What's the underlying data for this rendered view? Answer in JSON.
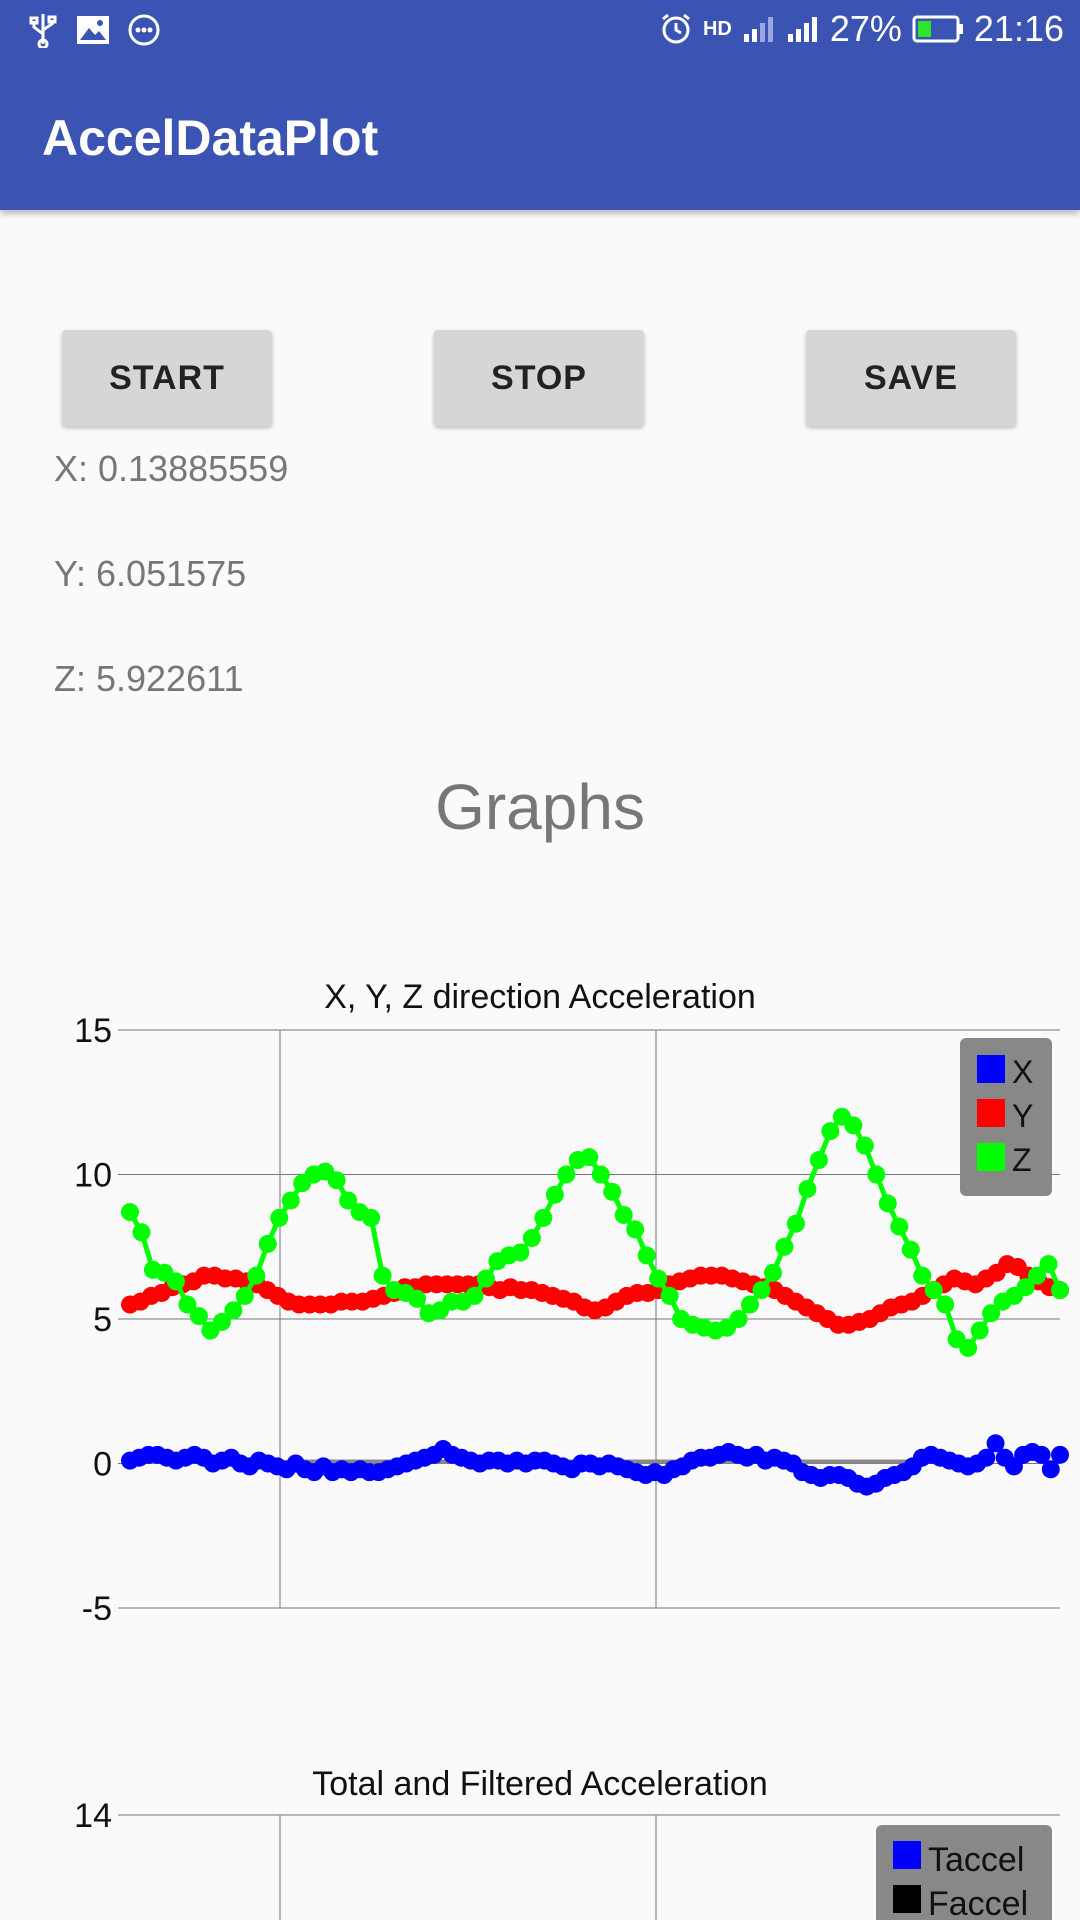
{
  "status_bar": {
    "battery_percent": "27%",
    "time": "21:16",
    "network_label": "HD",
    "icons": [
      "usb-icon",
      "image-icon",
      "more-icon",
      "alarm-icon",
      "signal-icon",
      "signal-icon",
      "battery-icon"
    ]
  },
  "app_bar": {
    "title": "AccelDataPlot"
  },
  "controls": {
    "start": "START",
    "stop": "STOP",
    "save": "SAVE"
  },
  "readings": {
    "x": "X: 0.13885559",
    "y": "Y: 6.051575",
    "z": "Z: 5.922611"
  },
  "section_title": "Graphs",
  "colors": {
    "primary": "#3b53b2",
    "series_x": "#0000ff",
    "series_y": "#ff0000",
    "series_z": "#00ff00"
  },
  "chart_data": [
    {
      "type": "line",
      "title": "X, Y, Z direction Acceleration",
      "xlabel": "",
      "ylabel": "",
      "ylim": [
        -5,
        15
      ],
      "y_ticks": [
        "15",
        "10",
        "5",
        "0",
        "-5"
      ],
      "grid": true,
      "legend_position": "top-right",
      "legend": [
        "X",
        "Y",
        "Z"
      ],
      "series": [
        {
          "name": "X",
          "color": "#0000ff",
          "values": [
            0.1,
            0.2,
            0.3,
            0.3,
            0.2,
            0.1,
            0.2,
            0.3,
            0.2,
            0.0,
            0.1,
            0.2,
            0.0,
            -0.1,
            0.1,
            0.0,
            -0.1,
            -0.2,
            0.0,
            -0.2,
            -0.3,
            -0.1,
            -0.3,
            -0.2,
            -0.3,
            -0.2,
            -0.3,
            -0.3,
            -0.2,
            -0.1,
            0.0,
            0.1,
            0.2,
            0.3,
            0.5,
            0.3,
            0.2,
            0.1,
            0.0,
            0.1,
            0.1,
            0.0,
            0.1,
            0.0,
            0.1,
            0.1,
            0.0,
            -0.1,
            -0.2,
            0.0,
            0.0,
            -0.1,
            0.0,
            -0.1,
            -0.2,
            -0.3,
            -0.4,
            -0.3,
            -0.4,
            -0.2,
            -0.1,
            0.1,
            0.2,
            0.2,
            0.3,
            0.4,
            0.3,
            0.2,
            0.3,
            0.1,
            0.2,
            0.1,
            0.0,
            -0.3,
            -0.4,
            -0.5,
            -0.4,
            -0.4,
            -0.5,
            -0.7,
            -0.8,
            -0.7,
            -0.5,
            -0.4,
            -0.3,
            -0.1,
            0.2,
            0.3,
            0.2,
            0.1,
            0.0,
            -0.1,
            0.0,
            0.2,
            0.7,
            0.2,
            -0.1,
            0.3,
            0.4,
            0.3,
            -0.2,
            0.3
          ]
        },
        {
          "name": "Y",
          "color": "#ff0000",
          "values": [
            5.5,
            5.6,
            5.8,
            5.9,
            6.1,
            6.2,
            6.3,
            6.5,
            6.5,
            6.4,
            6.4,
            6.3,
            6.2,
            6.0,
            5.8,
            5.6,
            5.5,
            5.5,
            5.5,
            5.5,
            5.6,
            5.6,
            5.6,
            5.7,
            5.8,
            5.9,
            6.1,
            6.1,
            6.2,
            6.2,
            6.2,
            6.2,
            6.2,
            6.2,
            6.1,
            6.0,
            6.1,
            6.0,
            6.0,
            5.9,
            5.8,
            5.7,
            5.6,
            5.4,
            5.3,
            5.4,
            5.6,
            5.8,
            5.9,
            5.9,
            6.0,
            6.2,
            6.3,
            6.4,
            6.5,
            6.5,
            6.5,
            6.4,
            6.3,
            6.2,
            6.1,
            6.0,
            5.8,
            5.6,
            5.4,
            5.2,
            5.0,
            4.8,
            4.8,
            4.9,
            5.0,
            5.2,
            5.4,
            5.5,
            5.6,
            5.8,
            6.0,
            6.2,
            6.4,
            6.3,
            6.2,
            6.4,
            6.6,
            6.9,
            6.8,
            6.5,
            6.3,
            6.1,
            6.0
          ]
        },
        {
          "name": "Z",
          "color": "#00ff00",
          "values": [
            8.7,
            8.0,
            6.7,
            6.6,
            6.3,
            5.5,
            5.1,
            4.6,
            4.9,
            5.3,
            5.8,
            6.5,
            7.6,
            8.5,
            9.1,
            9.7,
            10.0,
            10.1,
            9.8,
            9.1,
            8.7,
            8.5,
            6.5,
            6.0,
            5.9,
            5.7,
            5.2,
            5.3,
            5.6,
            5.6,
            5.8,
            6.4,
            7.0,
            7.2,
            7.3,
            7.8,
            8.5,
            9.3,
            10.0,
            10.5,
            10.6,
            10.0,
            9.4,
            8.6,
            8.1,
            7.2,
            6.4,
            5.8,
            5.0,
            4.8,
            4.7,
            4.6,
            4.7,
            5.0,
            5.5,
            6.0,
            6.6,
            7.5,
            8.3,
            9.5,
            10.5,
            11.5,
            12.0,
            11.7,
            11.0,
            10.0,
            9.0,
            8.2,
            7.4,
            6.5,
            6.0,
            5.5,
            4.3,
            4.0,
            4.6,
            5.2,
            5.6,
            5.8,
            6.1,
            6.5,
            6.9,
            6.0
          ]
        }
      ]
    },
    {
      "type": "line",
      "title": "Total and Filtered Acceleration",
      "xlabel": "",
      "ylabel": "",
      "y_ticks": [
        "14"
      ],
      "grid": true,
      "legend_position": "top-right",
      "legend": [
        "Taccel",
        "Faccel"
      ],
      "series": [
        {
          "name": "Taccel",
          "color": "#0000ff",
          "values": []
        },
        {
          "name": "Faccel",
          "color": "#000000",
          "values": []
        }
      ]
    }
  ]
}
